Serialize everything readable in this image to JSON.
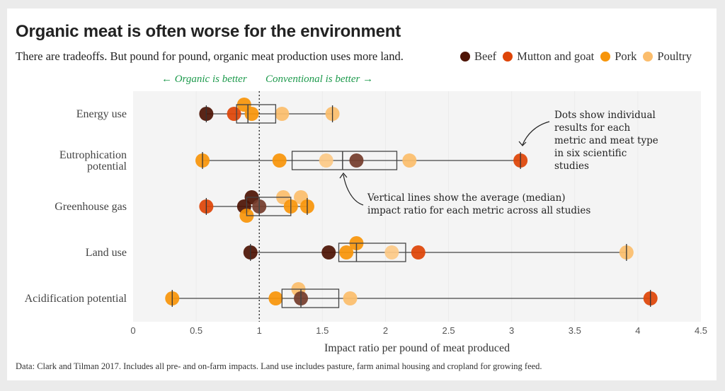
{
  "title": "Organic meat is often worse for the environment",
  "subtitle": "There are tradeoffs. But pound for pound, organic meat production uses more land.",
  "legend": [
    {
      "label": "Beef",
      "color": "#4e1405"
    },
    {
      "label": "Mutton and goat",
      "color": "#de4508"
    },
    {
      "label": "Pork",
      "color": "#f7950a"
    },
    {
      "label": "Poultry",
      "color": "#fbbd6c"
    }
  ],
  "direction_labels": {
    "left": "← Organic is better",
    "right": "Conventional is better →"
  },
  "annotations": {
    "dots": [
      "Dots show individual",
      "results for each",
      "metric and meat type",
      "in six scientific",
      "studies"
    ],
    "median": [
      "Vertical lines show the average (median)",
      "impact ratio for each metric across all studies"
    ]
  },
  "footnote": "Data: Clark and Tilman 2017. Includes all pre- and on-farm impacts. Land use includes pasture, farm animal housing and cropland for growing feed.",
  "chart_data": {
    "type": "scatter",
    "subtype": "box-and-dot",
    "title": "Organic meat is often worse for the environment",
    "xlabel": "Impact ratio per pound of meat produced",
    "ylabel": "",
    "xlim": [
      0,
      4.5
    ],
    "xticks": [
      0,
      0.5,
      1,
      1.5,
      2,
      2.5,
      3,
      3.5,
      4,
      4.5
    ],
    "xtick_labels": [
      "0",
      "0.5",
      "1",
      "1.5",
      "2",
      "2.5",
      "3",
      "3.5",
      "4",
      "4.5"
    ],
    "reference_line": 1,
    "grid": true,
    "legend_position": "top-right",
    "categories": [
      "Energy use",
      "Eutrophication potential",
      "Greenhouse gas",
      "Land use",
      "Acidification potential"
    ],
    "category_labels": [
      [
        "Energy use"
      ],
      [
        "Eutrophication",
        "potential"
      ],
      [
        "Greenhouse gas"
      ],
      [
        "Land use"
      ],
      [
        "Acidification potential"
      ]
    ],
    "boxes": [
      {
        "category": "Energy use",
        "min": 0.58,
        "q1": 0.82,
        "median": 0.91,
        "q3": 1.13,
        "max": 1.58
      },
      {
        "category": "Eutrophication potential",
        "min": 0.55,
        "q1": 1.26,
        "median": 1.66,
        "q3": 2.09,
        "max": 3.07
      },
      {
        "category": "Greenhouse gas",
        "min": 0.58,
        "q1": 0.9,
        "median": 1.0,
        "q3": 1.25,
        "max": 1.38
      },
      {
        "category": "Land use",
        "min": 0.93,
        "q1": 1.63,
        "median": 1.77,
        "q3": 2.16,
        "max": 3.91
      },
      {
        "category": "Acidification potential",
        "min": 0.31,
        "q1": 1.18,
        "median": 1.33,
        "q3": 1.63,
        "max": 4.1
      }
    ],
    "points": [
      {
        "category": "Energy use",
        "meat": "Beef",
        "value": 0.58,
        "offset": 0
      },
      {
        "category": "Energy use",
        "meat": "Mutton and goat",
        "value": 0.8,
        "offset": 0
      },
      {
        "category": "Energy use",
        "meat": "Pork",
        "value": 0.88,
        "offset": -1
      },
      {
        "category": "Energy use",
        "meat": "Pork",
        "value": 0.94,
        "offset": 0
      },
      {
        "category": "Energy use",
        "meat": "Poultry",
        "value": 1.18,
        "offset": 0
      },
      {
        "category": "Energy use",
        "meat": "Poultry",
        "value": 1.58,
        "offset": 0
      },
      {
        "category": "Eutrophication potential",
        "meat": "Pork",
        "value": 0.55,
        "offset": 0
      },
      {
        "category": "Eutrophication potential",
        "meat": "Pork",
        "value": 1.16,
        "offset": 0
      },
      {
        "category": "Eutrophication potential",
        "meat": "Poultry",
        "value": 1.53,
        "offset": 0,
        "tone": "light"
      },
      {
        "category": "Eutrophication potential",
        "meat": "Beef",
        "value": 1.77,
        "offset": 0,
        "tone": "mid"
      },
      {
        "category": "Eutrophication potential",
        "meat": "Poultry",
        "value": 2.19,
        "offset": 0
      },
      {
        "category": "Eutrophication potential",
        "meat": "Mutton and goat",
        "value": 3.07,
        "offset": 0
      },
      {
        "category": "Greenhouse gas",
        "meat": "Mutton and goat",
        "value": 0.58,
        "offset": 0
      },
      {
        "category": "Greenhouse gas",
        "meat": "Beef",
        "value": 0.88,
        "offset": 0
      },
      {
        "category": "Greenhouse gas",
        "meat": "Beef",
        "value": 0.94,
        "offset": -1
      },
      {
        "category": "Greenhouse gas",
        "meat": "Beef",
        "value": 1.0,
        "offset": 0,
        "tone": "mid"
      },
      {
        "category": "Greenhouse gas",
        "meat": "Pork",
        "value": 0.9,
        "offset": 1
      },
      {
        "category": "Greenhouse gas",
        "meat": "Poultry",
        "value": 1.19,
        "offset": -1
      },
      {
        "category": "Greenhouse gas",
        "meat": "Poultry",
        "value": 1.33,
        "offset": -1
      },
      {
        "category": "Greenhouse gas",
        "meat": "Pork",
        "value": 1.25,
        "offset": 0
      },
      {
        "category": "Greenhouse gas",
        "meat": "Pork",
        "value": 1.38,
        "offset": 0
      },
      {
        "category": "Land use",
        "meat": "Beef",
        "value": 0.93,
        "offset": 0
      },
      {
        "category": "Land use",
        "meat": "Beef",
        "value": 1.55,
        "offset": 0
      },
      {
        "category": "Land use",
        "meat": "Pork",
        "value": 1.69,
        "offset": 0
      },
      {
        "category": "Land use",
        "meat": "Pork",
        "value": 1.77,
        "offset": -1
      },
      {
        "category": "Land use",
        "meat": "Poultry",
        "value": 2.05,
        "offset": 0,
        "tone": "light"
      },
      {
        "category": "Land use",
        "meat": "Mutton and goat",
        "value": 2.26,
        "offset": 0
      },
      {
        "category": "Land use",
        "meat": "Poultry",
        "value": 3.91,
        "offset": 0
      },
      {
        "category": "Acidification potential",
        "meat": "Pork",
        "value": 0.31,
        "offset": 0
      },
      {
        "category": "Acidification potential",
        "meat": "Pork",
        "value": 1.13,
        "offset": 0
      },
      {
        "category": "Acidification potential",
        "meat": "Poultry",
        "value": 1.31,
        "offset": -1
      },
      {
        "category": "Acidification potential",
        "meat": "Beef",
        "value": 1.33,
        "offset": 0,
        "tone": "mid"
      },
      {
        "category": "Acidification potential",
        "meat": "Poultry",
        "value": 1.72,
        "offset": 0
      },
      {
        "category": "Acidification potential",
        "meat": "Mutton and goat",
        "value": 4.1,
        "offset": 0
      }
    ]
  }
}
